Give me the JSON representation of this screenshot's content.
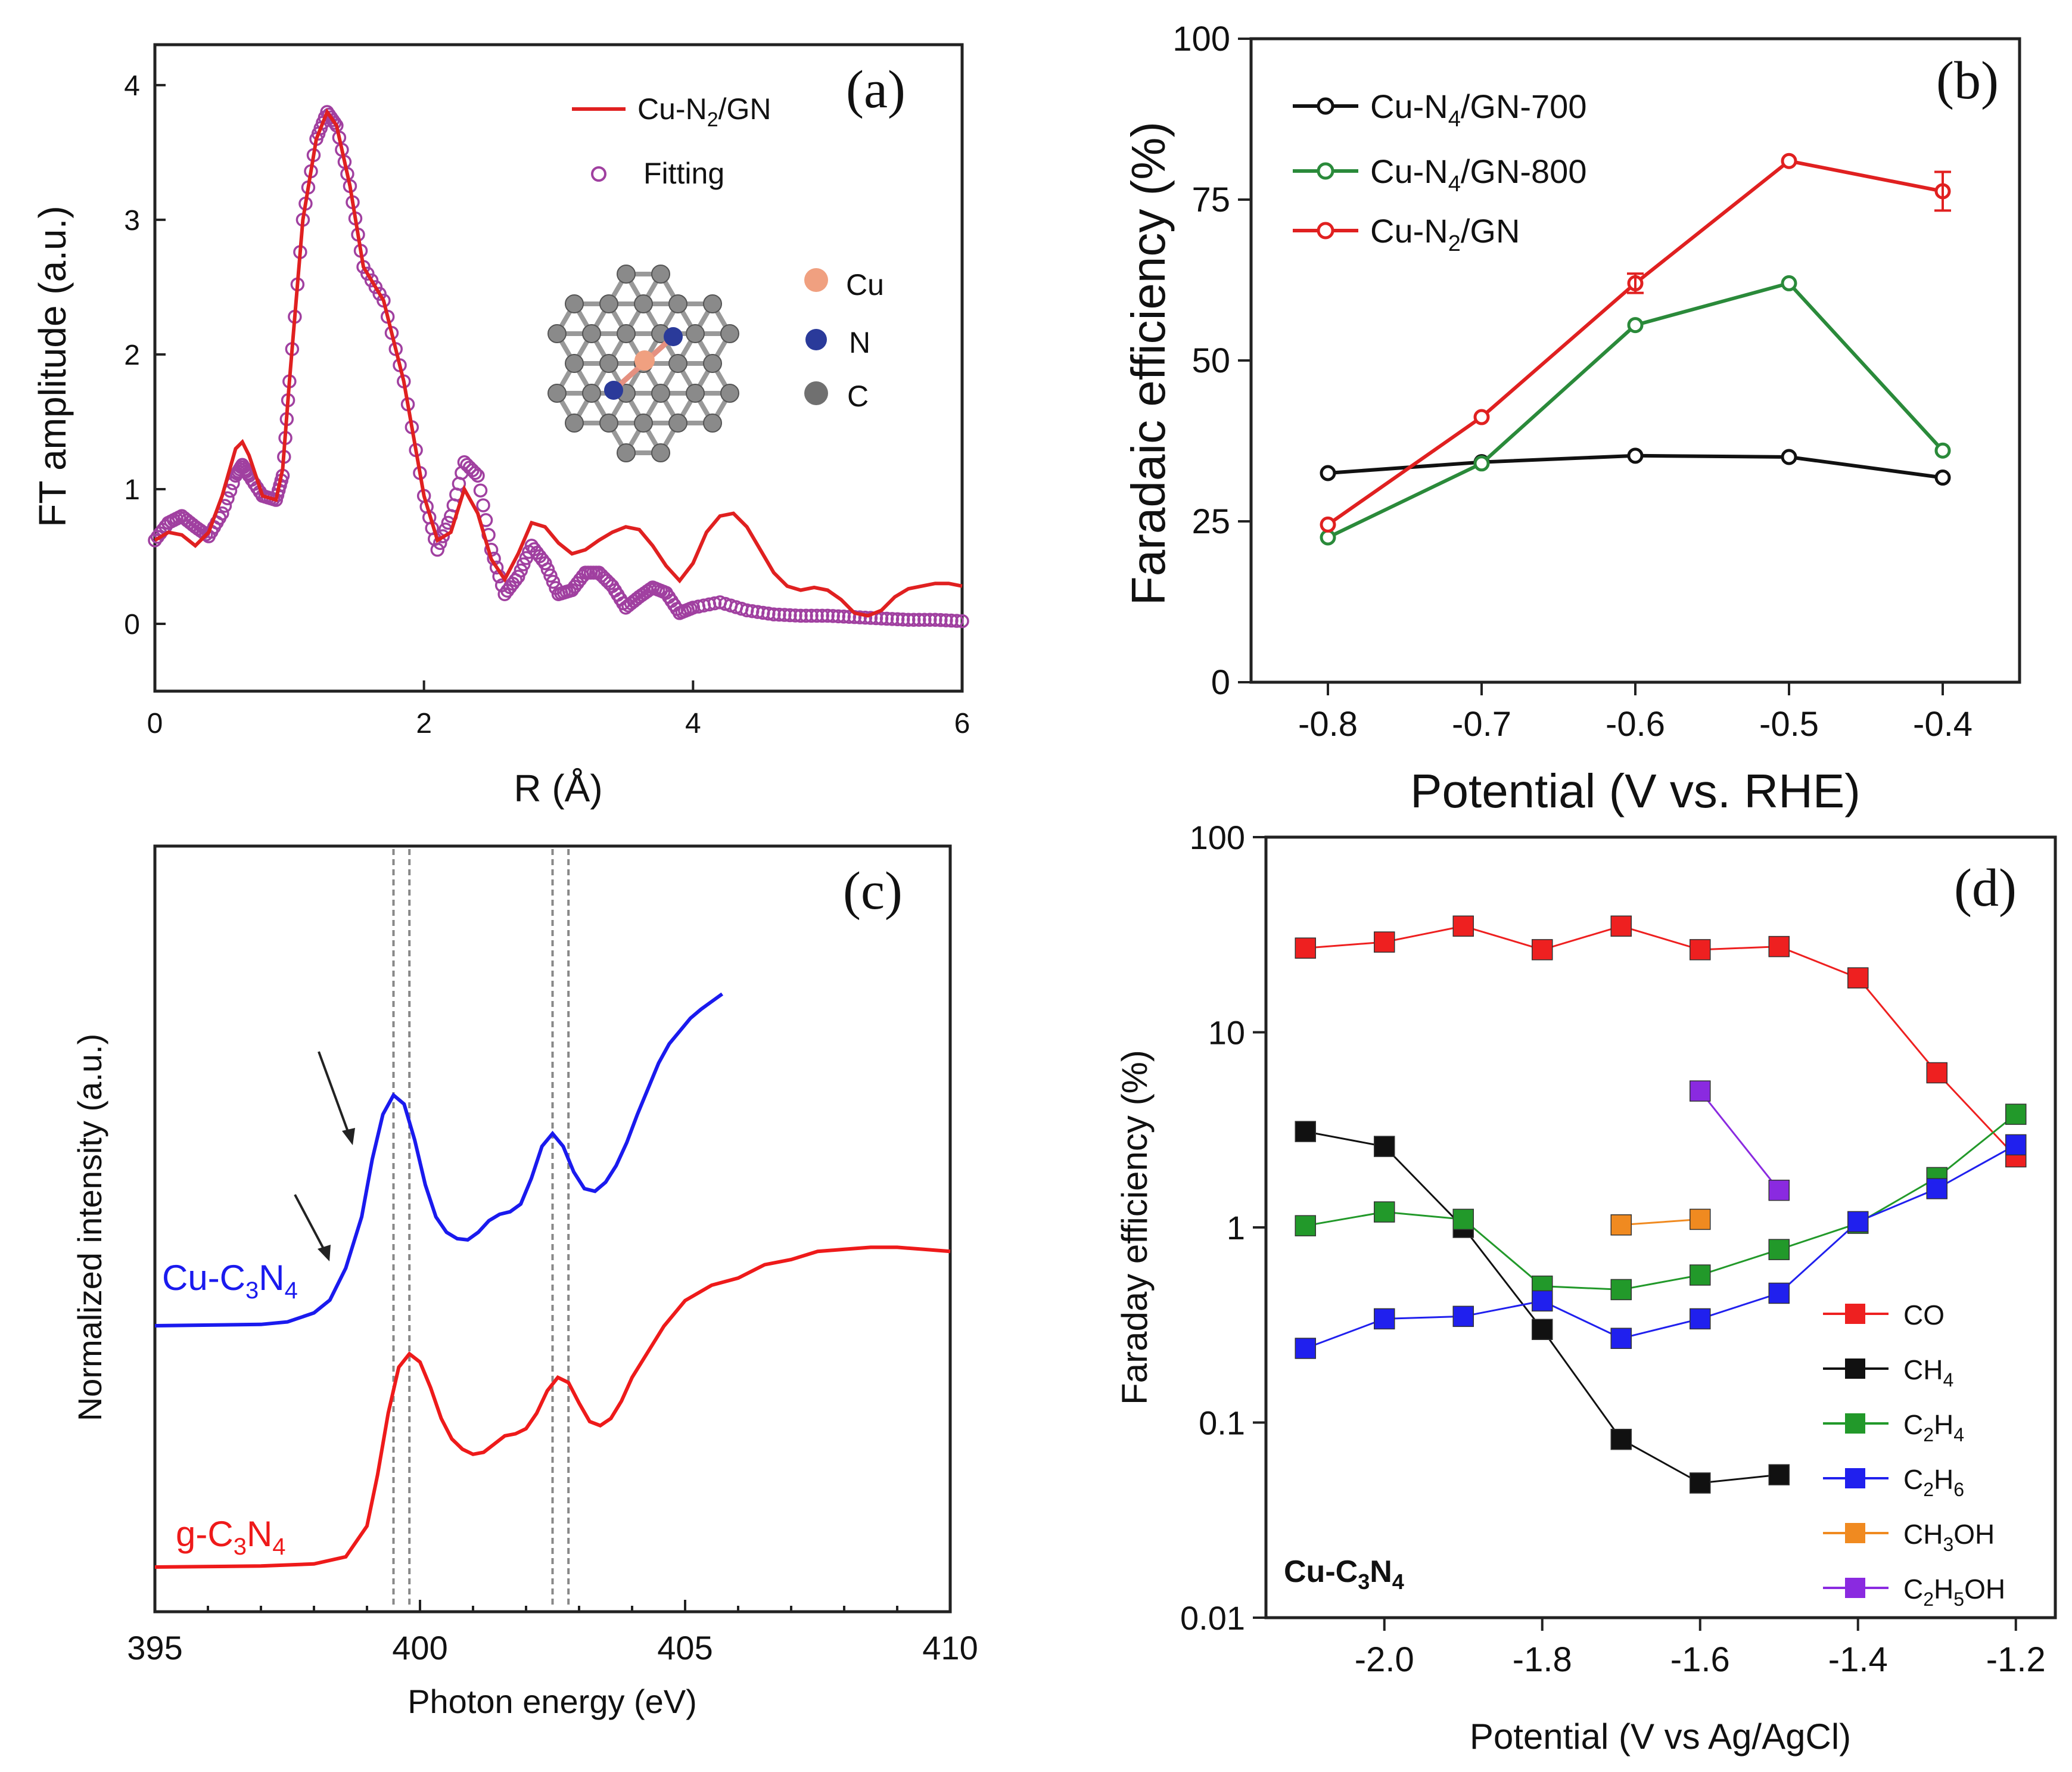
{
  "chart_data": [
    {
      "panel": "(a)",
      "type": "line",
      "xlabel": "R (Å)",
      "ylabel": "FT amplitude (a.u.)",
      "xlim": [
        0,
        6
      ],
      "ylim": [
        -0.5,
        4.3
      ],
      "xticks": [
        "0",
        "2",
        "4",
        "6"
      ],
      "yticks": [
        "0",
        "1",
        "2",
        "3",
        "4"
      ],
      "legend": [
        "Cu-N2/GN",
        "Fitting"
      ],
      "inset_labels": [
        "Cu",
        "N",
        "C"
      ],
      "colors": {
        "data": "#e02020",
        "fit": "#a040a0",
        "cu": "#f0a080",
        "n": "#2a3a9a",
        "c": "#707070"
      },
      "series": [
        {
          "name": "Cu-N2/GN",
          "style": "line",
          "x": [
            0,
            0.1,
            0.2,
            0.3,
            0.4,
            0.5,
            0.6,
            0.65,
            0.7,
            0.8,
            0.9,
            0.95,
            1.0,
            1.1,
            1.2,
            1.28,
            1.35,
            1.45,
            1.55,
            1.7,
            1.85,
            2.0,
            2.1,
            2.2,
            2.3,
            2.4,
            2.5,
            2.6,
            2.7,
            2.8,
            2.9,
            3.0,
            3.1,
            3.2,
            3.3,
            3.4,
            3.5,
            3.6,
            3.7,
            3.8,
            3.9,
            4.0,
            4.1,
            4.2,
            4.3,
            4.4,
            4.5,
            4.6,
            4.7,
            4.8,
            4.9,
            5.0,
            5.1,
            5.2,
            5.3,
            5.4,
            5.5,
            5.6,
            5.7,
            5.8,
            5.9,
            6.0
          ],
          "y": [
            0.62,
            0.68,
            0.66,
            0.58,
            0.68,
            0.95,
            1.3,
            1.35,
            1.25,
            0.95,
            0.92,
            1.15,
            1.8,
            3.0,
            3.6,
            3.8,
            3.7,
            3.25,
            2.65,
            2.4,
            1.8,
            0.95,
            0.62,
            0.68,
            1.0,
            0.82,
            0.48,
            0.33,
            0.52,
            0.75,
            0.72,
            0.6,
            0.52,
            0.55,
            0.62,
            0.68,
            0.72,
            0.7,
            0.58,
            0.43,
            0.32,
            0.45,
            0.68,
            0.8,
            0.82,
            0.72,
            0.55,
            0.38,
            0.28,
            0.25,
            0.27,
            0.25,
            0.18,
            0.08,
            0.06,
            0.1,
            0.2,
            0.26,
            0.28,
            0.3,
            0.3,
            0.28
          ]
        },
        {
          "name": "Fitting",
          "style": "open-circles",
          "x": [
            0,
            0.1,
            0.2,
            0.3,
            0.4,
            0.5,
            0.6,
            0.65,
            0.7,
            0.8,
            0.9,
            0.95,
            1.0,
            1.1,
            1.2,
            1.28,
            1.35,
            1.45,
            1.55,
            1.7,
            1.85,
            2.0,
            2.1,
            2.2,
            2.3,
            2.4,
            2.5,
            2.6,
            2.7,
            2.8,
            2.9,
            3.0,
            3.1,
            3.2,
            3.3,
            3.4,
            3.5,
            3.6,
            3.7,
            3.8,
            3.9,
            4.0,
            4.2,
            4.4,
            4.6,
            4.8,
            5.0,
            5.2,
            5.4,
            5.6,
            5.8,
            6.0
          ],
          "y": [
            0.62,
            0.75,
            0.8,
            0.72,
            0.65,
            0.82,
            1.1,
            1.18,
            1.1,
            0.95,
            0.92,
            1.1,
            1.8,
            3.0,
            3.6,
            3.8,
            3.7,
            3.25,
            2.65,
            2.4,
            1.8,
            0.95,
            0.55,
            0.8,
            1.2,
            1.1,
            0.55,
            0.22,
            0.35,
            0.58,
            0.45,
            0.22,
            0.25,
            0.38,
            0.38,
            0.28,
            0.12,
            0.2,
            0.27,
            0.23,
            0.08,
            0.12,
            0.16,
            0.1,
            0.07,
            0.06,
            0.06,
            0.05,
            0.04,
            0.03,
            0.03,
            0.02
          ]
        }
      ]
    },
    {
      "panel": "(b)",
      "type": "line",
      "xlabel": "Potential (V vs. RHE)",
      "ylabel": "Faradaic efficiency (%)",
      "xlim": [
        -0.85,
        -0.35
      ],
      "ylim": [
        0,
        100
      ],
      "xticks": [
        "-0.8",
        "-0.7",
        "-0.6",
        "-0.5",
        "-0.4"
      ],
      "yticks": [
        "0",
        "25",
        "50",
        "75",
        "100"
      ],
      "categories": [
        -0.8,
        -0.7,
        -0.6,
        -0.5,
        -0.4
      ],
      "series": [
        {
          "name": "Cu-N4/GN-700",
          "color": "#111111",
          "values": [
            32.5,
            34.2,
            35.2,
            35.0,
            31.8
          ]
        },
        {
          "name": "Cu-N4/GN-800",
          "color": "#2a8a3a",
          "values": [
            22.5,
            34.0,
            55.5,
            62.0,
            36.0
          ]
        },
        {
          "name": "Cu-N2/GN",
          "color": "#e02020",
          "values": [
            24.5,
            41.2,
            62.0,
            81.0,
            76.3
          ]
        }
      ],
      "legend": [
        "Cu-N4/GN-700",
        "Cu-N4/GN-800",
        "Cu-N2/GN"
      ]
    },
    {
      "panel": "(c)",
      "type": "line",
      "xlabel": "Photon energy (eV)",
      "ylabel": "Normalized intensity (a.u.)",
      "xlim": [
        395,
        410
      ],
      "xticks": [
        "395",
        "400",
        "405",
        "410"
      ],
      "reference_lines_eV": [
        399.5,
        399.8,
        402.5,
        402.8
      ],
      "series_labels": [
        "Cu-C3N4",
        "g-C3N4"
      ],
      "series": [
        {
          "name": "Cu-C3N4",
          "color": "#1a1aee",
          "x": [
            395,
            397,
            397.5,
            398,
            398.3,
            398.6,
            398.9,
            399.1,
            399.3,
            399.5,
            399.7,
            399.9,
            400.1,
            400.3,
            400.5,
            400.7,
            400.9,
            401.1,
            401.3,
            401.5,
            401.7,
            401.9,
            402.1,
            402.3,
            402.5,
            402.7,
            402.9,
            403.1,
            403.3,
            403.5,
            403.7,
            403.9,
            404.1,
            404.3,
            404.5,
            404.7,
            404.9,
            405.1,
            405.3,
            405.5,
            405.7
          ],
          "y": [
            1.15,
            1.16,
            1.18,
            1.25,
            1.35,
            1.6,
            2.0,
            2.45,
            2.8,
            2.95,
            2.88,
            2.6,
            2.25,
            2.0,
            1.88,
            1.83,
            1.82,
            1.88,
            1.97,
            2.02,
            2.04,
            2.1,
            2.3,
            2.55,
            2.65,
            2.55,
            2.35,
            2.22,
            2.2,
            2.27,
            2.4,
            2.58,
            2.8,
            3.0,
            3.2,
            3.35,
            3.45,
            3.55,
            3.62,
            3.68,
            3.74
          ]
        },
        {
          "name": "g-C3N4",
          "color": "#ee1a1a",
          "x": [
            395,
            397,
            398,
            398.6,
            399.0,
            399.2,
            399.4,
            399.6,
            399.8,
            400.0,
            400.2,
            400.4,
            400.6,
            400.8,
            401.0,
            401.2,
            401.4,
            401.6,
            401.8,
            402.0,
            402.2,
            402.4,
            402.6,
            402.8,
            403.0,
            403.2,
            403.4,
            403.6,
            403.8,
            404.0,
            404.3,
            404.6,
            405.0,
            405.5,
            406.0,
            406.5,
            407.0,
            407.5,
            408.0,
            408.5,
            409.0,
            409.5,
            410.0
          ],
          "y": [
            0.0,
            0.01,
            0.03,
            0.1,
            0.4,
            0.9,
            1.5,
            1.95,
            2.08,
            2.0,
            1.75,
            1.45,
            1.25,
            1.15,
            1.1,
            1.12,
            1.2,
            1.28,
            1.3,
            1.35,
            1.5,
            1.72,
            1.85,
            1.8,
            1.6,
            1.42,
            1.38,
            1.45,
            1.62,
            1.85,
            2.1,
            2.35,
            2.6,
            2.75,
            2.82,
            2.95,
            3.0,
            3.08,
            3.1,
            3.12,
            3.12,
            3.1,
            3.08
          ]
        }
      ]
    },
    {
      "panel": "(d)",
      "type": "line",
      "yscale": "log",
      "xlabel": "Potential (V vs Ag/AgCl)",
      "ylabel": "Faraday efficiency (%)",
      "xlim": [
        -2.15,
        -1.15
      ],
      "ylim": [
        0.01,
        100
      ],
      "xticks": [
        "-2.0",
        "-1.8",
        "-1.6",
        "-1.4",
        "-1.2"
      ],
      "yticks": [
        "0.01",
        "0.1",
        "1",
        "10",
        "100"
      ],
      "annotation": "Cu-C3N4",
      "series": [
        {
          "name": "CO",
          "color": "#ee2020",
          "x": [
            -2.1,
            -2.0,
            -1.9,
            -1.8,
            -1.7,
            -1.6,
            -1.5,
            -1.4,
            -1.3,
            -1.2
          ],
          "values": [
            27,
            29,
            35,
            26.5,
            35,
            26.5,
            27.5,
            19,
            6.2,
            2.3
          ]
        },
        {
          "name": "CH4",
          "color": "#111111",
          "x": [
            -2.1,
            -2.0,
            -1.9,
            -1.8,
            -1.7,
            -1.6,
            -1.5
          ],
          "values": [
            3.1,
            2.6,
            1.0,
            0.3,
            0.082,
            0.049,
            0.054
          ]
        },
        {
          "name": "C2H4",
          "color": "#22992a",
          "x": [
            -2.1,
            -2.0,
            -1.9,
            -1.8,
            -1.7,
            -1.6,
            -1.5,
            -1.4,
            -1.3,
            -1.2
          ],
          "values": [
            1.02,
            1.2,
            1.1,
            0.5,
            0.48,
            0.57,
            0.77,
            1.05,
            1.8,
            3.8
          ]
        },
        {
          "name": "C2H6",
          "color": "#2020ee",
          "x": [
            -2.1,
            -2.0,
            -1.9,
            -1.8,
            -1.7,
            -1.6,
            -1.5,
            -1.4,
            -1.3,
            -1.2
          ],
          "values": [
            0.24,
            0.34,
            0.35,
            0.42,
            0.27,
            0.34,
            0.46,
            1.07,
            1.58,
            2.65
          ]
        },
        {
          "name": "CH3OH",
          "color": "#f08a20",
          "x": [
            -1.7,
            -1.6
          ],
          "values": [
            1.03,
            1.1
          ]
        },
        {
          "name": "C2H5OH",
          "color": "#8a2ae0",
          "x": [
            -1.6,
            -1.5
          ],
          "values": [
            5.0,
            1.55
          ]
        }
      ],
      "legend": [
        "CO",
        "CH4",
        "C2H4",
        "C2H6",
        "CH3OH",
        "C2H5OH"
      ]
    }
  ]
}
